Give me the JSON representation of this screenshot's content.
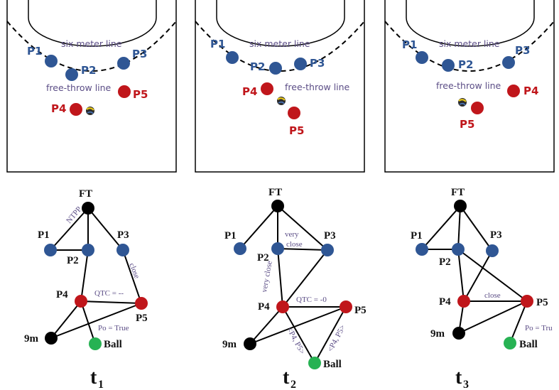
{
  "courts": {
    "six_meter_line": "six meter line",
    "free_throw_line": "free-throw line",
    "players": {
      "p1": "P1",
      "p2": "P2",
      "p3": "P3",
      "p4": "P4",
      "p5": "P5"
    }
  },
  "graphs": {
    "nodes": {
      "ft": "FT",
      "p1": "P1",
      "p2": "P2",
      "p3": "P3",
      "p4": "P4",
      "p5": "P5",
      "nine_m": "9m",
      "ball": "Ball"
    },
    "t1": {
      "ntpp": "NTPP",
      "close": "close",
      "qtc": "QTC = --",
      "po": "Po = True"
    },
    "t2": {
      "very_close_top": "very",
      "very_close_bottom": "close",
      "very_close_vertical": "very close",
      "qtc": "QTC = -0",
      "p4p5_left": "<P4, P5>",
      "p4p5_right": "<P4, P5>"
    },
    "t3": {
      "close": "close",
      "po": "Po = Tru"
    }
  },
  "time_labels": {
    "t1": {
      "main": "t",
      "sub": "1"
    },
    "t2": {
      "main": "t",
      "sub": "2"
    },
    "t3": {
      "main": "t",
      "sub": "3"
    }
  },
  "colors": {
    "blue_player": "#2f5694",
    "red_player": "#c0161b",
    "ball_green": "#27b253",
    "black_node": "#000000",
    "label_purple": "#5b4d86"
  }
}
